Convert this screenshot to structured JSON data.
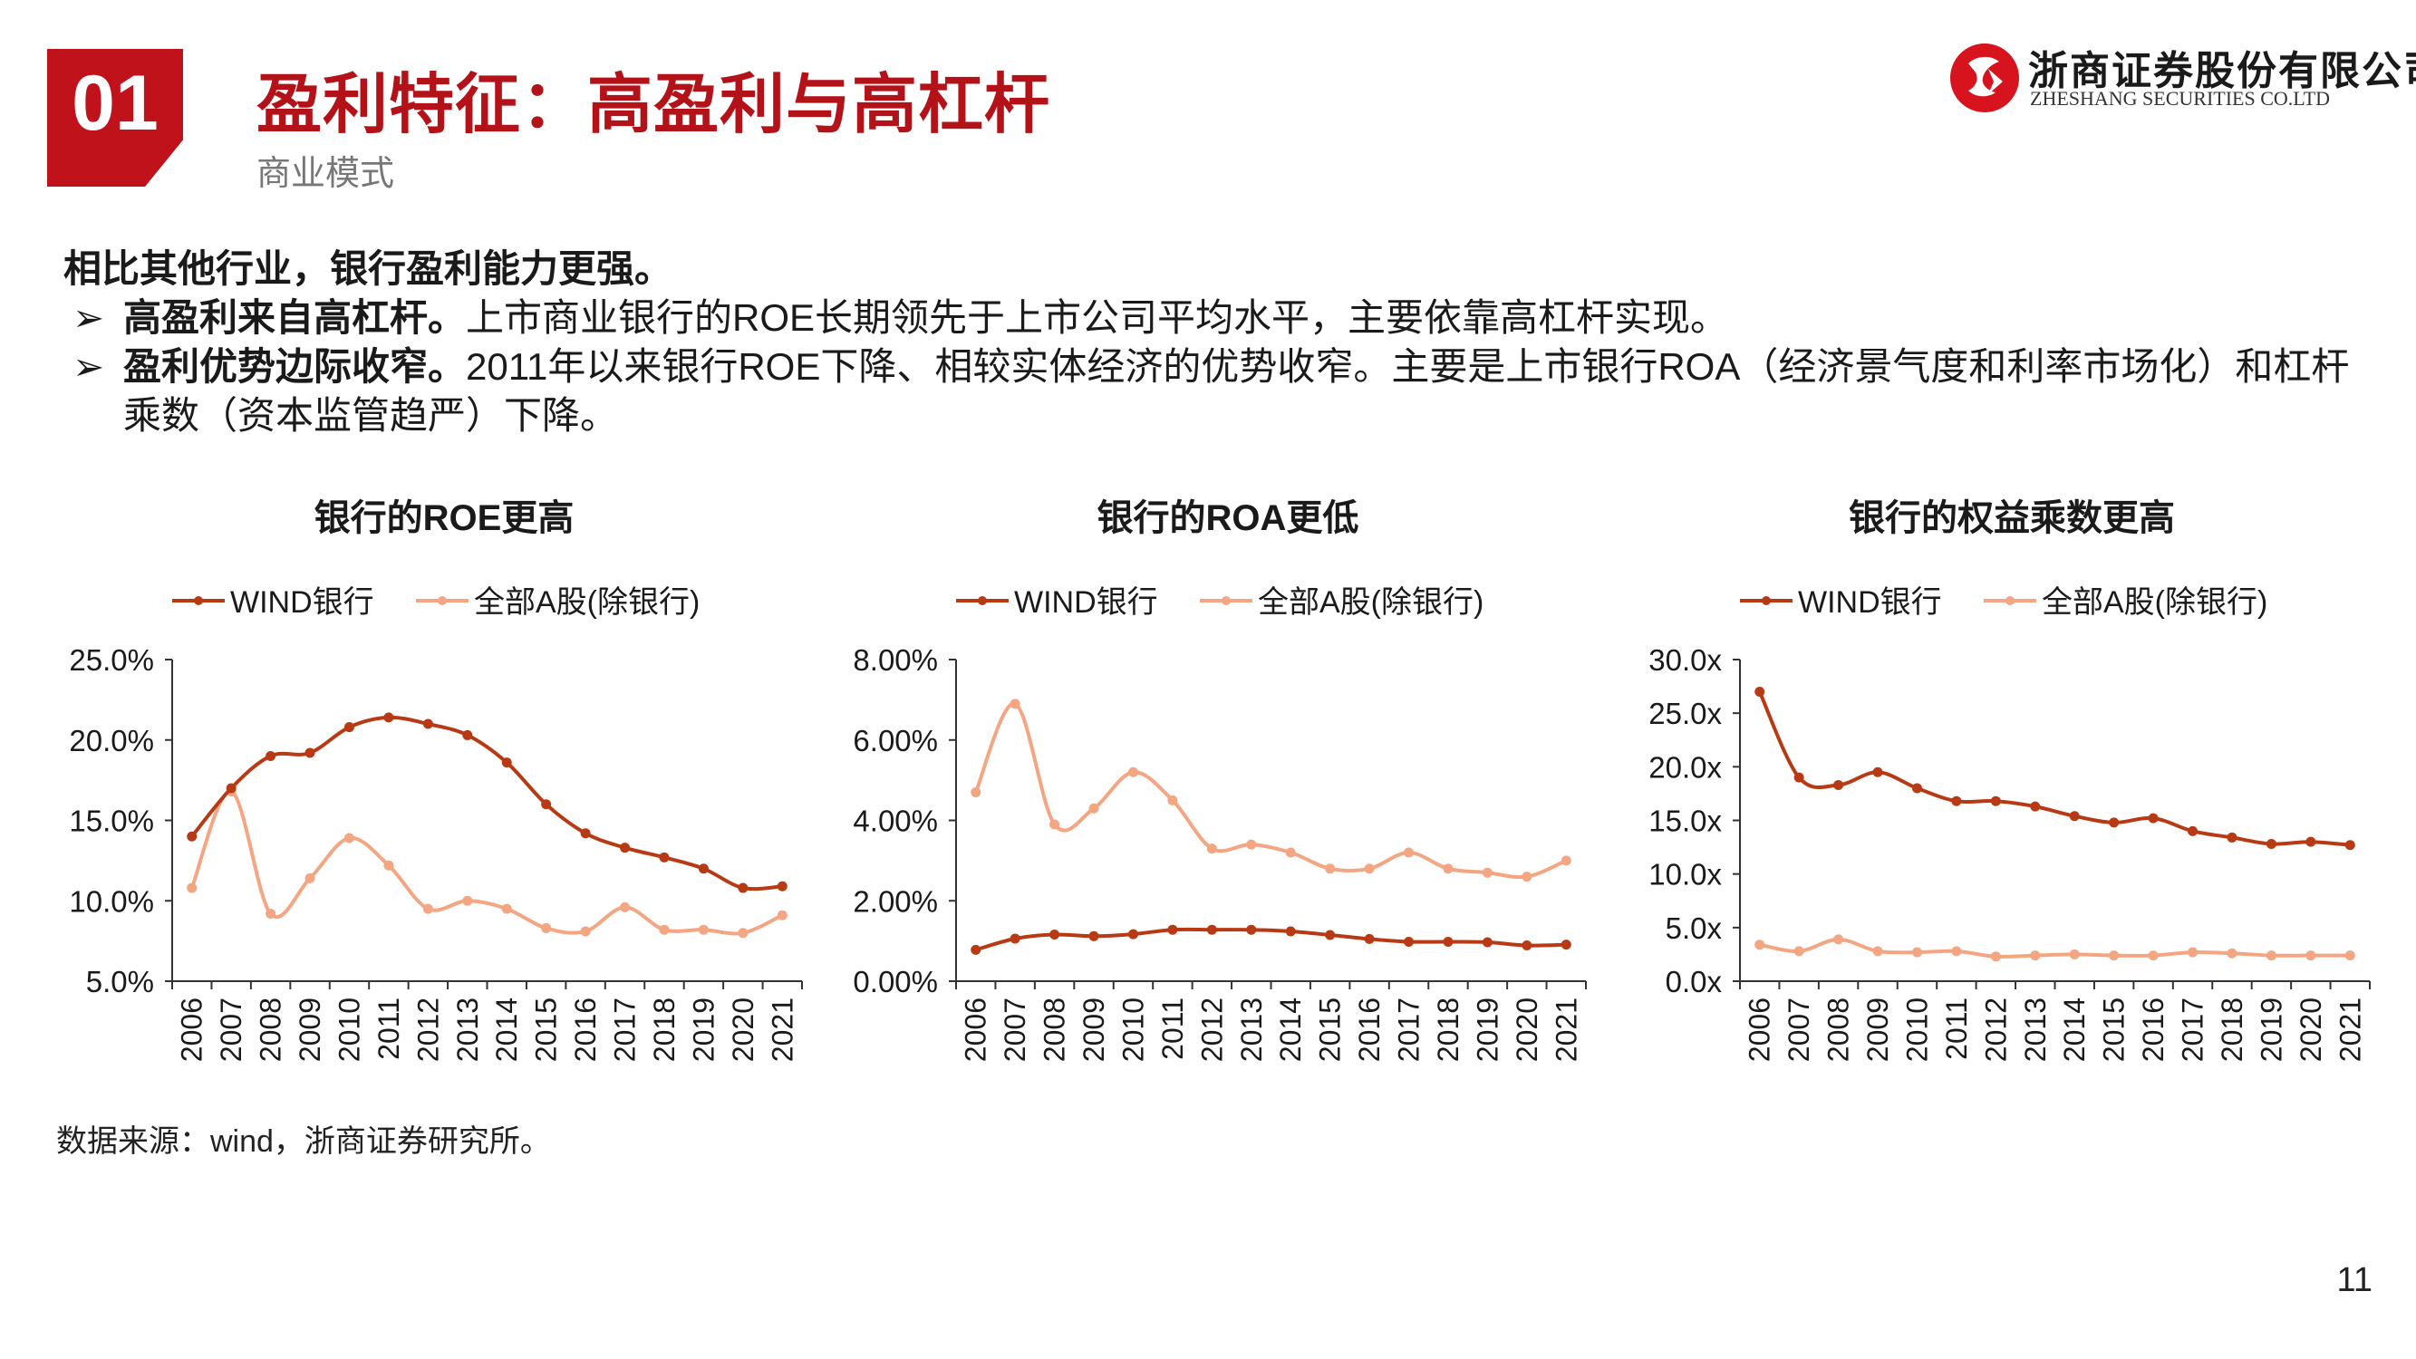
{
  "header": {
    "section_number": "01",
    "title": "盈利特征：高盈利与高杠杆",
    "subtitle": "商业模式"
  },
  "logo": {
    "name_cn": "浙商证券股份有限公司",
    "name_en": "ZHESHANG SECURITIES CO.LTD"
  },
  "intro": {
    "lead": "相比其他行业，银行盈利能力更强。",
    "bullets": [
      {
        "marker": "➢",
        "bold": "高盈利来自高杠杆。",
        "text": "上市商业银行的ROE长期领先于上市公司平均水平，主要依靠高杠杆实现。"
      },
      {
        "marker": "➢",
        "bold": "盈利优势边际收窄。",
        "text": "2011年以来银行ROE下降、相较实体经济的优势收窄。主要是上市银行ROA（经济景气度和利率市场化）和杠杆乘数（资本监管趋严）下降。"
      }
    ]
  },
  "colors": {
    "accent": "#c0121b",
    "series_bank": "#b83a14",
    "series_all": "#f4a582",
    "axis": "#333333"
  },
  "chart_data": [
    {
      "type": "line",
      "title": "银行的ROE更高",
      "x": [
        "2006",
        "2007",
        "2008",
        "2009",
        "2010",
        "2011",
        "2012",
        "2013",
        "2014",
        "2015",
        "2016",
        "2017",
        "2018",
        "2019",
        "2020",
        "2021"
      ],
      "ylim": [
        5,
        25
      ],
      "yticks": [
        5,
        10,
        15,
        20,
        25
      ],
      "ytick_labels": [
        "5.0%",
        "10.0%",
        "15.0%",
        "20.0%",
        "25.0%"
      ],
      "legend_position": "top",
      "series": [
        {
          "name": "WIND银行",
          "color": "#b83a14",
          "values": [
            14.0,
            17.0,
            19.0,
            19.2,
            20.8,
            21.4,
            21.0,
            20.3,
            18.6,
            16.0,
            14.2,
            13.3,
            12.7,
            12.0,
            10.8,
            10.9
          ]
        },
        {
          "name": "全部A股(除银行)",
          "color": "#f4a582",
          "values": [
            10.8,
            16.8,
            9.2,
            11.4,
            13.9,
            12.2,
            9.5,
            10.0,
            9.5,
            8.3,
            8.1,
            9.6,
            8.2,
            8.2,
            8.0,
            9.1
          ]
        }
      ]
    },
    {
      "type": "line",
      "title": "银行的ROA更低",
      "x": [
        "2006",
        "2007",
        "2008",
        "2009",
        "2010",
        "2011",
        "2012",
        "2013",
        "2014",
        "2015",
        "2016",
        "2017",
        "2018",
        "2019",
        "2020",
        "2021"
      ],
      "ylim": [
        0,
        8
      ],
      "yticks": [
        0,
        2,
        4,
        6,
        8
      ],
      "ytick_labels": [
        "0.00%",
        "2.00%",
        "4.00%",
        "6.00%",
        "8.00%"
      ],
      "legend_position": "top",
      "series": [
        {
          "name": "WIND银行",
          "color": "#b83a14",
          "values": [
            0.78,
            1.06,
            1.16,
            1.12,
            1.17,
            1.28,
            1.28,
            1.28,
            1.24,
            1.15,
            1.05,
            0.98,
            0.98,
            0.97,
            0.89,
            0.91
          ]
        },
        {
          "name": "全部A股(除银行)",
          "color": "#f4a582",
          "values": [
            4.7,
            6.9,
            3.9,
            4.3,
            5.2,
            4.5,
            3.3,
            3.4,
            3.2,
            2.8,
            2.8,
            3.2,
            2.8,
            2.7,
            2.6,
            3.0
          ]
        }
      ]
    },
    {
      "type": "line",
      "title": "银行的权益乘数更高",
      "x": [
        "2006",
        "2007",
        "2008",
        "2009",
        "2010",
        "2011",
        "2012",
        "2013",
        "2014",
        "2015",
        "2016",
        "2017",
        "2018",
        "2019",
        "2020",
        "2021"
      ],
      "ylim": [
        0,
        30
      ],
      "yticks": [
        0,
        5,
        10,
        15,
        20,
        25,
        30
      ],
      "ytick_labels": [
        "0.0x",
        "5.0x",
        "10.0x",
        "15.0x",
        "20.0x",
        "25.0x",
        "30.0x"
      ],
      "legend_position": "top",
      "series": [
        {
          "name": "WIND银行",
          "color": "#b83a14",
          "values": [
            27.0,
            19.0,
            18.3,
            19.5,
            18.0,
            16.8,
            16.8,
            16.3,
            15.4,
            14.8,
            15.2,
            14.0,
            13.4,
            12.8,
            13.0,
            12.7
          ]
        },
        {
          "name": "全部A股(除银行)",
          "color": "#f4a582",
          "values": [
            3.4,
            2.8,
            3.9,
            2.8,
            2.7,
            2.8,
            2.3,
            2.4,
            2.5,
            2.4,
            2.4,
            2.7,
            2.6,
            2.4,
            2.4,
            2.4
          ]
        }
      ]
    }
  ],
  "footer": {
    "source": "数据来源：wind，浙商证券研究所。",
    "page_number": "11"
  }
}
